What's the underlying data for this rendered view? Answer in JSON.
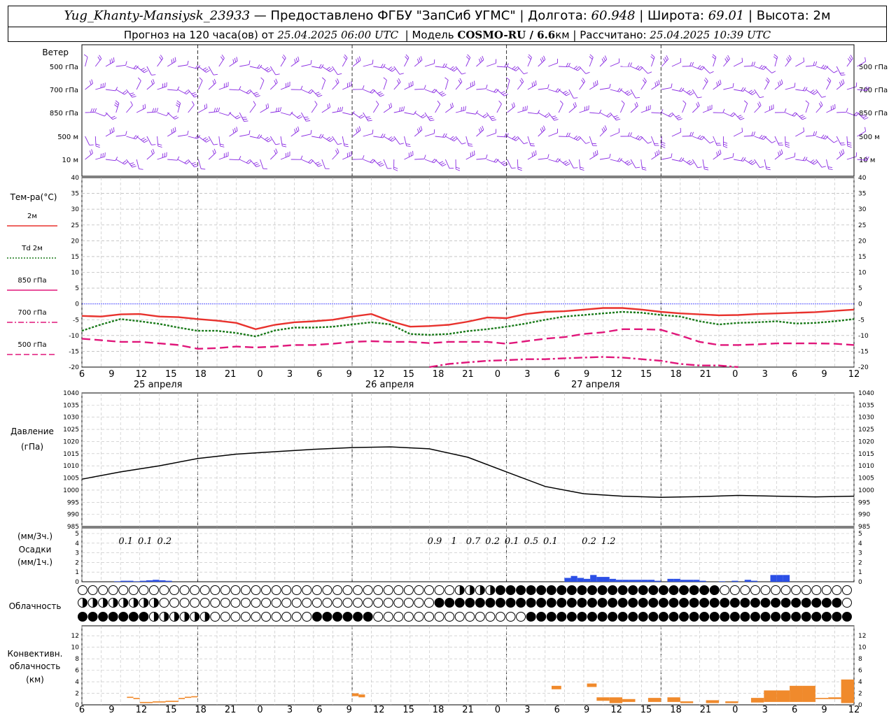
{
  "header": {
    "station": "Yug_Khanty-Mansiysk_23933",
    "provider": " — Предоставлено ФГБУ \"ЗапСиб УГМС\" | Долгота: ",
    "lon": "60.948",
    "lat_label": " | Широта: ",
    "lat": "69.01",
    "alt_label": " | Высота: 2м",
    "forecast_prefix": "Прогноз на 120 часа(ов) от ",
    "forecast_time": "25.04.2025 06:00 UTC",
    "model_label": "  | Модель ",
    "model": "COSMO-RU / 6.6",
    "model_unit": "км | Рассчитано: ",
    "calc_time": "25.04.2025 10:39 UTC"
  },
  "wind_panel": {
    "title": "Ветер",
    "levels": [
      "500 гПа",
      "700 гПа",
      "850 гПа",
      "500 м",
      "10 м"
    ],
    "color": "#8a2be2"
  },
  "temp_panel": {
    "title": "Тем-ра(°С)",
    "legend": [
      {
        "label": "2м",
        "color": "#e8322d",
        "style": "solid"
      },
      {
        "label": "Td 2м",
        "color": "#1a7a1a",
        "style": "dotted"
      },
      {
        "label": "850 гПа",
        "color": "#e0167a",
        "style": "solid"
      },
      {
        "label": "700 гПа",
        "color": "#e0167a",
        "style": "dashdot"
      },
      {
        "label": "500 гПа",
        "color": "#e0167a",
        "style": "dashed"
      }
    ],
    "ylim": [
      -20,
      40
    ],
    "yticks": [
      "40",
      "35",
      "30",
      "25",
      "20",
      "15",
      "10",
      "5",
      "0",
      "-5",
      "-10",
      "-15",
      "-20"
    ]
  },
  "x_axis": {
    "hours": [
      "6",
      "9",
      "12",
      "15",
      "18",
      "21",
      "0",
      "3",
      "6",
      "9",
      "12",
      "15",
      "18",
      "21",
      "0",
      "3",
      "6",
      "9",
      "12",
      "15",
      "18",
      "21",
      "0",
      "3",
      "6",
      "9",
      "12"
    ],
    "days": [
      "25 апреля",
      "26 апреля",
      "27 апреля"
    ]
  },
  "pressure_panel": {
    "title": "Давление",
    "unit": "(гПа)",
    "ylim": [
      985,
      1040
    ],
    "yticks": [
      "1040",
      "1035",
      "1030",
      "1025",
      "1020",
      "1015",
      "1010",
      "1005",
      "1000",
      "995",
      "990",
      "985"
    ]
  },
  "precip_panel": {
    "label1": "(мм/3ч.)",
    "label2": "Осадки",
    "label3": "(мм/1ч.)",
    "yticks": [
      "5",
      "4",
      "3",
      "2",
      "1",
      "0"
    ],
    "totals": [
      {
        "hour": 9,
        "text": "0.1"
      },
      {
        "hour": 12,
        "text": "0.1"
      },
      {
        "hour": 15,
        "text": "0.2"
      },
      {
        "hour": 57,
        "text": "0.9"
      },
      {
        "hour": 60,
        "text": "1"
      },
      {
        "hour": 63,
        "text": "0.7"
      },
      {
        "hour": 66,
        "text": "0.2"
      },
      {
        "hour": 69,
        "text": "0.1"
      },
      {
        "hour": 72,
        "text": "0.5"
      },
      {
        "hour": 75,
        "text": "0.1"
      },
      {
        "hour": 81,
        "text": "0.2"
      },
      {
        "hour": 84,
        "text": "1.2"
      }
    ]
  },
  "cloud_panel": {
    "title": "Облачность"
  },
  "conv_panel": {
    "title1": "Конвективн.",
    "title2": "облачность",
    "title3": "(км)",
    "yticks": [
      "12",
      "10",
      "8",
      "6",
      "4",
      "2",
      "0"
    ]
  },
  "chart_data": [
    {
      "type": "line",
      "title": "Тем-ра(°С)",
      "x_hours_from_start": [
        0,
        3,
        6,
        9,
        12,
        15,
        18,
        21,
        24,
        27,
        30,
        33,
        36,
        39,
        42,
        45,
        48,
        51,
        54,
        57,
        60,
        63,
        66,
        69,
        72,
        75,
        78,
        81,
        84,
        87,
        90,
        93,
        96,
        99,
        102,
        105,
        108,
        111,
        114,
        117,
        120
      ],
      "series": [
        {
          "name": "2м",
          "values": [
            -3.8,
            -4,
            -3.3,
            -3.2,
            -4,
            -4.2,
            -4.8,
            -5.3,
            -6,
            -8,
            -6.6,
            -5.8,
            -5.5,
            -5,
            -4,
            -3.2,
            -5.5,
            -7.2,
            -7,
            -6.6,
            -5.6,
            -4.3,
            -4.5,
            -3.2,
            -2.5,
            -2.3,
            -1.8,
            -1.3,
            -1.3,
            -1.8,
            -2.5,
            -3,
            -3.3,
            -3.6,
            -3.5,
            -3.2,
            -3,
            -2.8,
            -2.6,
            -2.2,
            -1.8
          ]
        },
        {
          "name": "Td 2м",
          "values": [
            -8.5,
            -6.5,
            -4.8,
            -5.5,
            -6.3,
            -7.5,
            -8.5,
            -8.5,
            -9.2,
            -10.3,
            -8.4,
            -7.5,
            -7.5,
            -7.2,
            -6.5,
            -5.8,
            -6.5,
            -9.5,
            -9.8,
            -9.5,
            -8.6,
            -8,
            -7.2,
            -6.2,
            -5,
            -4,
            -3.5,
            -3,
            -2.5,
            -2.8,
            -3.5,
            -4,
            -5.5,
            -6.5,
            -6,
            -5.8,
            -5.5,
            -6.2,
            -6,
            -5.5,
            -4.8
          ]
        },
        {
          "name": "850 гПа",
          "values": [
            -11,
            -11.5,
            -12,
            -12,
            -12.5,
            -13,
            -14.2,
            -14,
            -13.5,
            -13.8,
            -13.5,
            -13,
            -13,
            -12.6,
            -12,
            -11.8,
            -12,
            -12,
            -12.4,
            -12,
            -12,
            -12,
            -12.6,
            -11.8,
            -11,
            -10.5,
            -9.5,
            -9,
            -8,
            -8,
            -8.2,
            -10,
            -12,
            -13,
            -13,
            -12.8,
            -12.5,
            -12.5,
            -12.5,
            -12.6,
            -13
          ]
        },
        {
          "name": "700 гПа",
          "values": [
            null,
            null,
            null,
            null,
            null,
            null,
            null,
            null,
            null,
            null,
            null,
            null,
            null,
            null,
            null,
            null,
            null,
            null,
            -20,
            -19,
            -18.5,
            -18,
            -17.8,
            -17.5,
            -17.5,
            -17.2,
            -17,
            -16.8,
            -17,
            -17.5,
            -18,
            -19,
            -19.5,
            -19.5,
            -20,
            null,
            null,
            null,
            null,
            null,
            null
          ]
        }
      ],
      "ylim": [
        -20,
        40
      ]
    },
    {
      "type": "line",
      "title": "Давление",
      "x_hours_from_start": [
        0,
        6,
        12,
        18,
        24,
        30,
        36,
        42,
        48,
        54,
        60,
        66,
        72,
        78,
        84,
        90,
        96,
        102,
        108,
        114,
        120
      ],
      "series": [
        {
          "name": "",
          "values": [
            1004.5,
            1007.5,
            1010,
            1013,
            1014.8,
            1015.8,
            1016.8,
            1017.5,
            1017.8,
            1017,
            1013.5,
            1007.5,
            1001.5,
            998.5,
            997.5,
            997,
            997.3,
            997.8,
            997.5,
            997.2,
            997.5
          ]
        }
      ],
      "ylim": [
        985,
        1040
      ]
    },
    {
      "type": "bar",
      "title": "Осадки",
      "x_hours_from_start": [
        6,
        7,
        8,
        9,
        10,
        11,
        12,
        13,
        14,
        15,
        16,
        17,
        18,
        19,
        20,
        21,
        22,
        23,
        24,
        25,
        26,
        27,
        28,
        29,
        30,
        31,
        32,
        33,
        34,
        35,
        36,
        37,
        38,
        39,
        40,
        41,
        42,
        43,
        44,
        45,
        46,
        47,
        48,
        49,
        50,
        51,
        52,
        53,
        54,
        55,
        56,
        57,
        58,
        59,
        60,
        61,
        62,
        63,
        64,
        65,
        66,
        67,
        68,
        69,
        70,
        71,
        72,
        73,
        74,
        75,
        76,
        77,
        78,
        79,
        80,
        81,
        82,
        83,
        84,
        85,
        86,
        87,
        88,
        89,
        90,
        91,
        92,
        93,
        94,
        95,
        96,
        97,
        98,
        99,
        100,
        101,
        102,
        103,
        104,
        105,
        106,
        107,
        108,
        109,
        110,
        111,
        112,
        113,
        114,
        115,
        116,
        117,
        118,
        119
      ],
      "values": [
        0.05,
        0.1,
        0.1,
        0.05,
        0.1,
        0.15,
        0.2,
        0.15,
        0.1,
        0,
        0,
        0,
        0,
        0,
        0,
        0,
        0,
        0,
        0,
        0,
        0,
        0,
        0,
        0,
        0,
        0,
        0,
        0,
        0,
        0,
        0,
        0,
        0,
        0,
        0,
        0,
        0,
        0,
        0,
        0,
        0,
        0,
        0,
        0,
        0,
        0,
        0,
        0,
        0,
        0,
        0,
        0,
        0,
        0,
        0,
        0,
        0,
        0,
        0,
        0,
        0,
        0,
        0,
        0,
        0,
        0,
        0,
        0,
        0,
        0,
        0.4,
        0.6,
        0.4,
        0.3,
        0.7,
        0.5,
        0.5,
        0.3,
        0.2,
        0.2,
        0.2,
        0.2,
        0.2,
        0.2,
        0.1,
        0,
        0.3,
        0.3,
        0.2,
        0.2,
        0.2,
        0.1,
        0,
        0,
        0.05,
        0,
        0.1,
        0,
        0.2,
        0.1,
        0,
        0,
        0.7,
        0.7,
        0.7,
        0,
        0,
        0,
        0,
        0,
        0,
        0,
        0,
        0,
        0,
        0,
        0,
        0,
        0,
        0,
        0,
        0,
        0,
        0
      ],
      "unit": "мм/1ч."
    },
    {
      "type": "bar",
      "title": "Конвективн. облачность",
      "segments_hours": [
        [
          7,
          8
        ],
        [
          8,
          9
        ],
        [
          9,
          11
        ],
        [
          11,
          13
        ],
        [
          13,
          15
        ],
        [
          15,
          16
        ],
        [
          16,
          17
        ],
        [
          17,
          18
        ],
        [
          42,
          43
        ],
        [
          43,
          44
        ]
      ],
      "segments_km": [
        [
          1.2,
          1.4
        ],
        [
          1,
          1.2
        ],
        [
          0.3,
          0.5
        ],
        [
          0.4,
          0.6
        ],
        [
          0.5,
          0.7
        ],
        [
          1,
          1.2
        ],
        [
          1.2,
          1.4
        ],
        [
          1.3,
          1.5
        ],
        [
          1.5,
          2
        ],
        [
          1.3,
          1.8
        ]
      ]
    }
  ]
}
